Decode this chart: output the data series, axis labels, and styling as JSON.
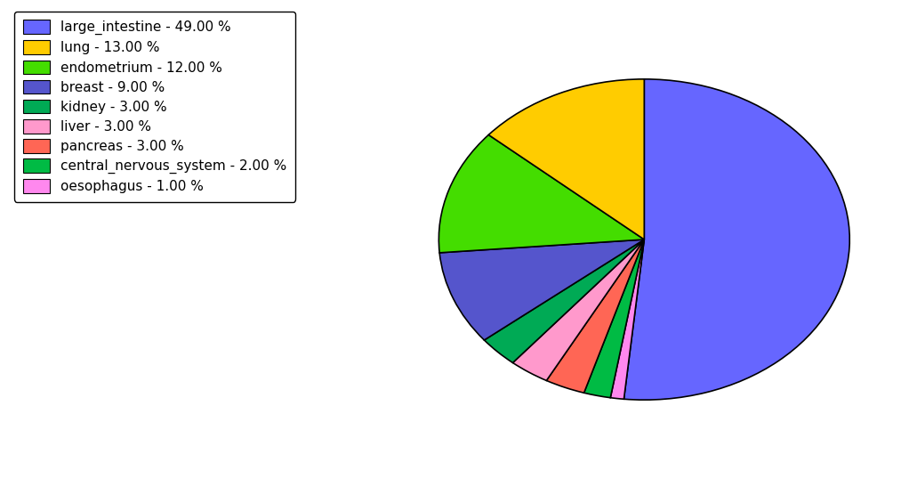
{
  "labels": [
    "large_intestine",
    "lung",
    "endometrium",
    "breast",
    "kidney",
    "liver",
    "pancreas",
    "central_nervous_system",
    "oesophagus"
  ],
  "values": [
    49.0,
    13.0,
    12.0,
    9.0,
    3.0,
    3.0,
    3.0,
    2.0,
    1.0
  ],
  "pie_colors": {
    "large_intestine": "#6666ff",
    "lung": "#ffcc00",
    "endometrium": "#44dd00",
    "breast": "#5555cc",
    "kidney": "#00aa55",
    "liver": "#ff99cc",
    "pancreas": "#ff6655",
    "central_nervous_system": "#00bb44",
    "oesophagus": "#ff88ee"
  },
  "legend_labels": [
    "large_intestine - 49.00 %",
    "lung - 13.00 %",
    "endometrium - 12.00 %",
    "breast - 9.00 %",
    "kidney - 3.00 %",
    "liver - 3.00 %",
    "pancreas - 3.00 %",
    "central_nervous_system - 2.00 %",
    "oesophagus - 1.00 %"
  ],
  "figsize": [
    10.13,
    5.38
  ],
  "dpi": 100,
  "clockwise_order_indices": [
    0,
    8,
    7,
    6,
    5,
    4,
    3,
    2,
    1
  ]
}
